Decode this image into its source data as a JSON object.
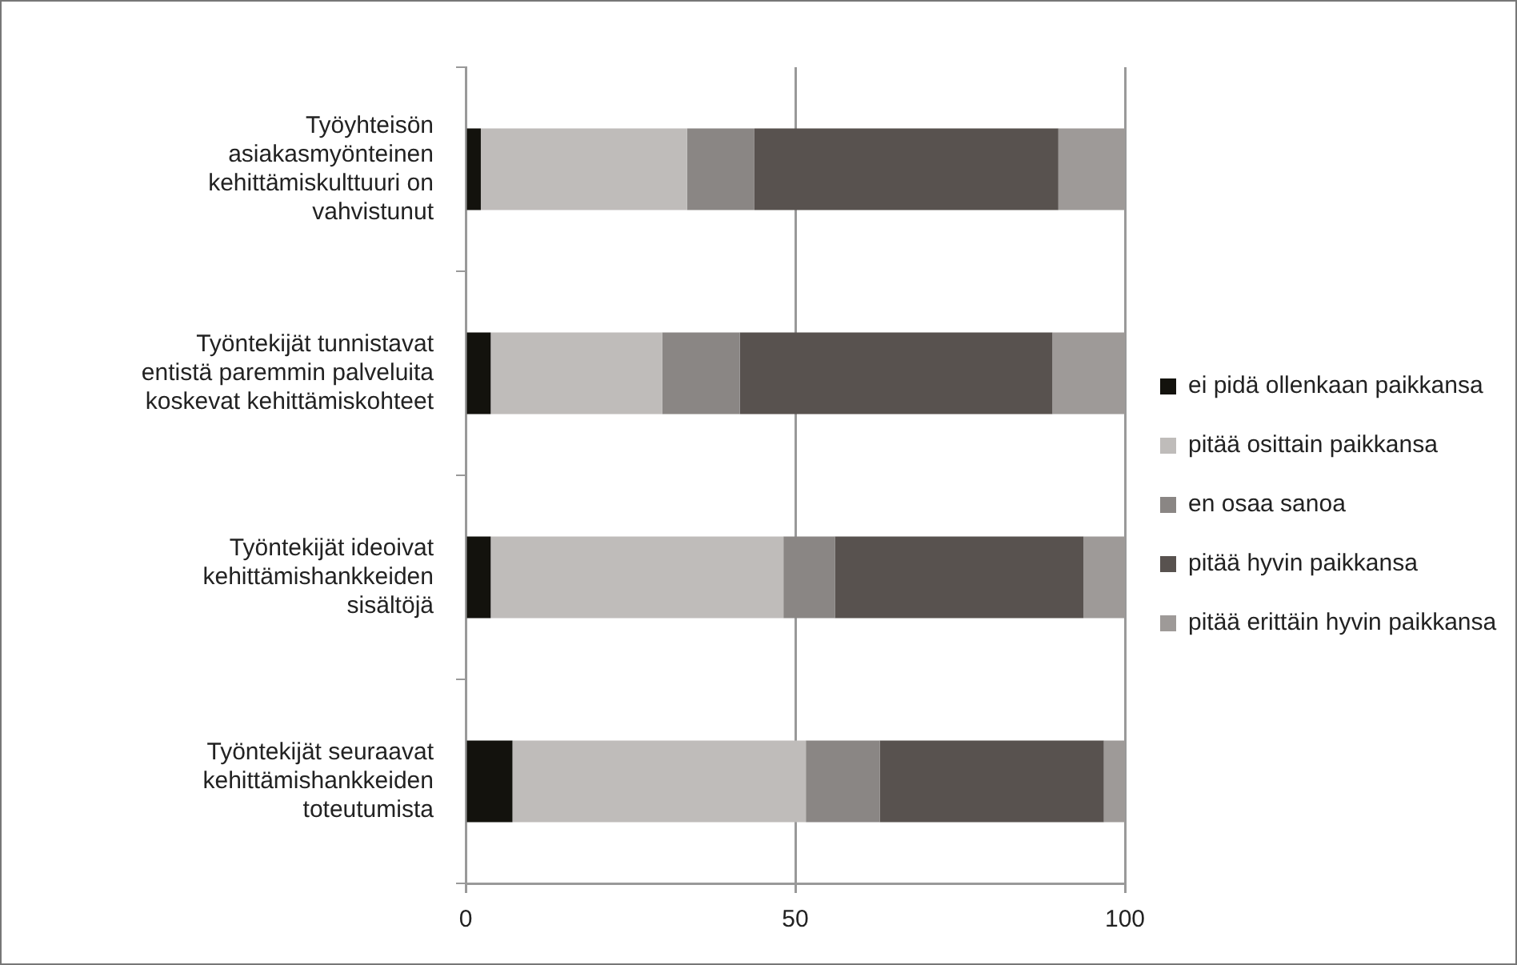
{
  "chart_data": {
    "type": "bar",
    "orientation": "horizontal",
    "stacked": true,
    "categories": [
      "Työyhteisön asiakasmyönteinen kehittämiskulttuuri on vahvistunut",
      "Työntekijät tunnistavat entistä paremmin palveluita koskevat kehittämiskohteet",
      "Työntekijät ideoivat kehittämishankkeiden sisältöjä",
      "Työntekijät seuraavat kehittämishankkeiden toteutumista"
    ],
    "series": [
      {
        "name": "ei pidä ollenkaan paikkansa",
        "color": "#13120d",
        "values": [
          2.3,
          3.8,
          3.8,
          7.1
        ]
      },
      {
        "name": "pitää osittain paikkansa",
        "color": "#bfbcba",
        "values": [
          31.3,
          26.0,
          44.4,
          44.5
        ]
      },
      {
        "name": "en osaa sanoa",
        "color": "#8a8684",
        "values": [
          10.2,
          11.8,
          7.8,
          11.2
        ]
      },
      {
        "name": "pitää hyvin paikkansa",
        "color": "#58524f",
        "values": [
          46.1,
          47.4,
          37.7,
          34.0
        ]
      },
      {
        "name": "pitää erittäin hyvin paikkansa",
        "color": "#9e9a98",
        "values": [
          10.1,
          11.0,
          6.3,
          3.2
        ]
      }
    ],
    "xlim": [
      0,
      100
    ],
    "xticks": [
      0,
      50,
      100
    ],
    "grid": "x",
    "legend": "right"
  }
}
